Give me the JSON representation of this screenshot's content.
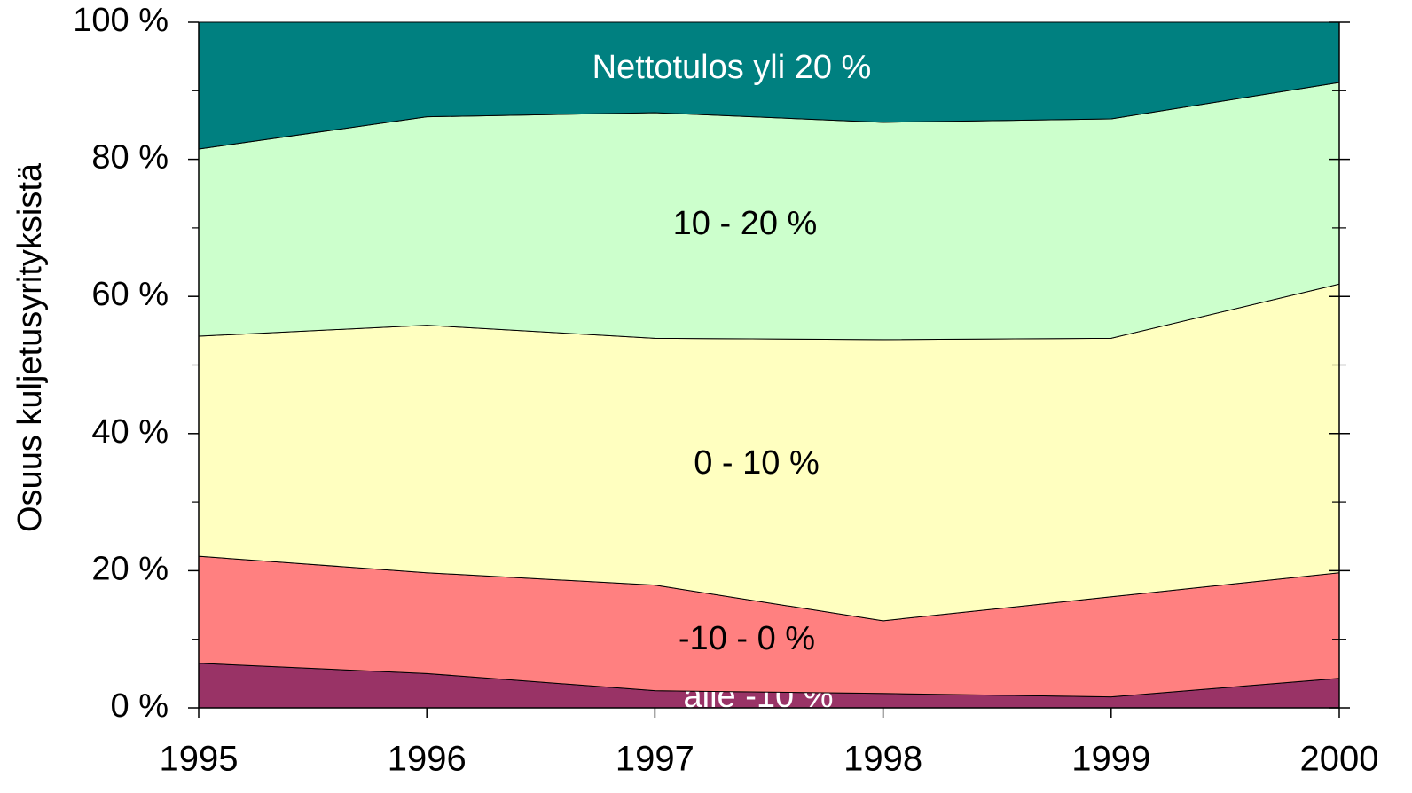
{
  "chart_data": {
    "type": "stacked_area",
    "y_axis_label": "Osuus kuljetusyrityksistä",
    "x": [
      1995,
      1996,
      1997,
      1998,
      1999,
      2000
    ],
    "xlim": [
      1995,
      2000
    ],
    "xticks": [
      1995,
      1996,
      1997,
      1998,
      1999,
      2000
    ],
    "ylim": [
      0,
      100
    ],
    "yticks": [
      {
        "value": 0,
        "label": "0 %"
      },
      {
        "value": 20,
        "label": "20 %"
      },
      {
        "value": 40,
        "label": "40 %"
      },
      {
        "value": 60,
        "label": "60 %"
      },
      {
        "value": 80,
        "label": "80 %"
      },
      {
        "value": 100,
        "label": "100 %"
      }
    ],
    "minor_yticks": [
      10,
      30,
      50,
      70,
      90
    ],
    "series": [
      {
        "name": "alle -10 %",
        "color": "#993366",
        "values": [
          6.5,
          5.0,
          2.5,
          2.1,
          1.6,
          4.3
        ]
      },
      {
        "name": "-10 - 0 %",
        "color": "#ff8080",
        "values": [
          15.6,
          14.7,
          15.4,
          10.6,
          14.6,
          15.4
        ]
      },
      {
        "name": "0 - 10 %",
        "color": "#ffffc0",
        "values": [
          32.1,
          36.1,
          36.0,
          41.0,
          37.7,
          42.1
        ]
      },
      {
        "name": "10 - 20 %",
        "color": "#ccffcc",
        "values": [
          27.3,
          30.4,
          32.9,
          31.7,
          32.0,
          29.4
        ]
      },
      {
        "name": "Nettotulos yli 20 %",
        "color": "#008080",
        "values": [
          18.5,
          13.8,
          13.2,
          14.6,
          14.1,
          8.8
        ]
      }
    ]
  }
}
